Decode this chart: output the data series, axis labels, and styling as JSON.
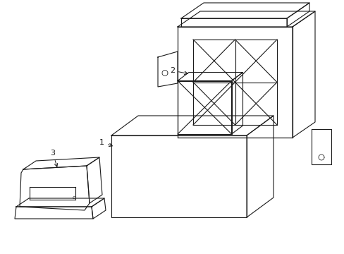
{
  "bg_color": "#ffffff",
  "line_color": "#1a1a1a",
  "line_width": 0.8,
  "figsize": [
    4.89,
    3.6
  ],
  "dpi": 100
}
